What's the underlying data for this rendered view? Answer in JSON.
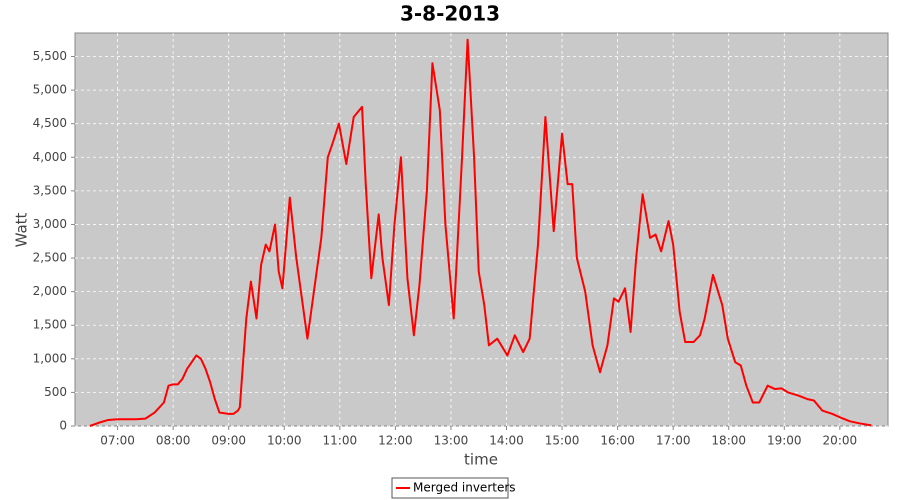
{
  "chart_data": {
    "type": "line",
    "title": "3-8-2013",
    "x_label": "time",
    "y_label": "Watt",
    "x": [
      "06:30",
      "06:40",
      "06:50",
      "07:00",
      "07:10",
      "07:20",
      "07:30",
      "07:40",
      "07:50",
      "07:55",
      "08:00",
      "08:05",
      "08:10",
      "08:15",
      "08:20",
      "08:25",
      "08:30",
      "08:35",
      "08:40",
      "08:45",
      "08:50",
      "09:00",
      "09:05",
      "09:10",
      "09:12",
      "09:19",
      "09:24",
      "09:30",
      "09:35",
      "09:40",
      "09:44",
      "09:50",
      "09:54",
      "09:58",
      "10:06",
      "10:13",
      "10:19",
      "10:25",
      "10:32",
      "10:36",
      "10:40",
      "10:47",
      "10:52",
      "10:59",
      "11:07",
      "11:15",
      "11:24",
      "11:28",
      "11:34",
      "11:42",
      "11:46",
      "11:53",
      "11:59",
      "12:06",
      "12:13",
      "12:20",
      "12:26",
      "12:34",
      "12:40",
      "12:48",
      "12:54",
      "13:03",
      "13:12",
      "13:18",
      "13:25",
      "13:30",
      "13:36",
      "13:41",
      "13:50",
      "14:01",
      "14:09",
      "14:18",
      "14:25",
      "14:34",
      "14:42",
      "14:51",
      "15:00",
      "15:06",
      "15:11",
      "15:16",
      "15:25",
      "15:33",
      "15:41",
      "15:49",
      "15:56",
      "16:01",
      "16:08",
      "16:14",
      "16:20",
      "16:27",
      "16:35",
      "16:41",
      "16:47",
      "16:55",
      "17:00",
      "17:07",
      "17:13",
      "17:22",
      "17:29",
      "17:34",
      "17:43",
      "17:53",
      "17:59",
      "18:07",
      "18:13",
      "18:19",
      "18:26",
      "18:33",
      "18:42",
      "18:50",
      "18:57",
      "19:04",
      "19:16",
      "19:25",
      "19:32",
      "19:41",
      "19:52",
      "20:00",
      "20:11",
      "20:21",
      "20:34"
    ],
    "series": [
      {
        "name": "Merged inverters",
        "color": "#ff0000",
        "values": [
          0,
          50,
          90,
          100,
          100,
          100,
          110,
          200,
          350,
          600,
          620,
          620,
          700,
          850,
          950,
          1050,
          1000,
          850,
          650,
          400,
          200,
          180,
          180,
          230,
          280,
          1600,
          2150,
          1600,
          2400,
          2700,
          2600,
          3000,
          2300,
          2050,
          3400,
          2500,
          1900,
          1300,
          2000,
          2400,
          2800,
          4000,
          4200,
          4500,
          3900,
          4600,
          4750,
          3600,
          2200,
          3150,
          2500,
          1800,
          3000,
          4000,
          2200,
          1350,
          2100,
          3500,
          5400,
          4700,
          3000,
          1600,
          4000,
          5750,
          4000,
          2300,
          1800,
          1200,
          1300,
          1050,
          1350,
          1100,
          1300,
          2700,
          4600,
          2900,
          4350,
          3600,
          3600,
          2500,
          2000,
          1200,
          800,
          1200,
          1900,
          1850,
          2050,
          1400,
          2500,
          3450,
          2800,
          2850,
          2600,
          3050,
          2700,
          1700,
          1250,
          1250,
          1350,
          1600,
          2250,
          1800,
          1300,
          950,
          900,
          600,
          350,
          350,
          600,
          550,
          560,
          500,
          450,
          400,
          380,
          230,
          180,
          130,
          70,
          40,
          10
        ]
      }
    ],
    "xlim": [
      "06:14",
      "20:52"
    ],
    "xticks": [
      "07:00",
      "08:00",
      "09:00",
      "10:00",
      "11:00",
      "12:00",
      "13:00",
      "14:00",
      "15:00",
      "16:00",
      "17:00",
      "18:00",
      "19:00",
      "20:00"
    ],
    "ylim": [
      0,
      5850
    ],
    "yticks": [
      0,
      500,
      {
        "value": 1000,
        "label": "1,000"
      },
      {
        "value": 1500,
        "label": "1,500"
      },
      {
        "value": 2000,
        "label": "2,000"
      },
      {
        "value": 2500,
        "label": "2,500"
      },
      {
        "value": 3000,
        "label": "3,000"
      },
      {
        "value": 3500,
        "label": "3,500"
      },
      {
        "value": 4000,
        "label": "4,000"
      },
      {
        "value": 4500,
        "label": "4,500"
      },
      {
        "value": 5000,
        "label": "5,000"
      },
      {
        "value": 5500,
        "label": "5,500"
      }
    ],
    "grid": true,
    "legend": "bottom"
  }
}
